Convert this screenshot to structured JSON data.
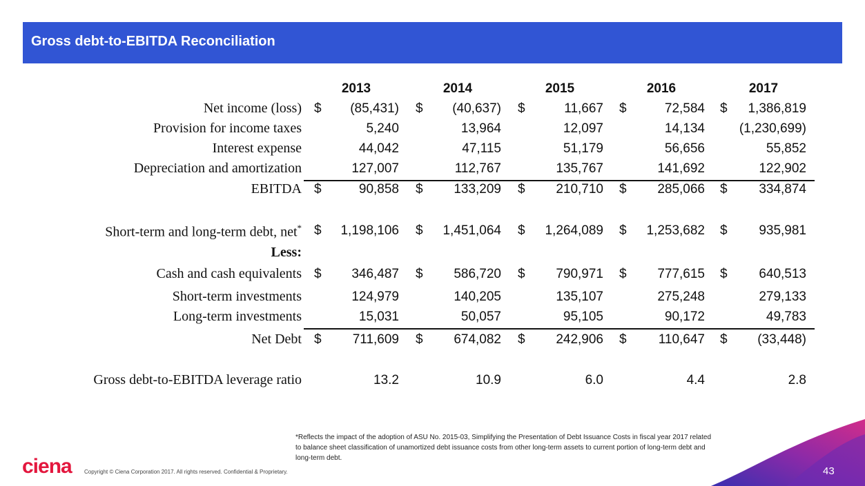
{
  "header": {
    "title": "Gross debt-to-EBITDA Reconciliation"
  },
  "table": {
    "currency_symbol": "$",
    "columns": [
      "2013",
      "2014",
      "2015",
      "2016",
      "2017"
    ],
    "rows": [
      {
        "label": "Net income (loss)",
        "dollar": true,
        "values": [
          "(85,431)",
          "(40,637)",
          "11,667",
          "72,584",
          "1,386,819"
        ]
      },
      {
        "label": "Provision for income taxes",
        "values": [
          "5,240",
          "13,964",
          "12,097",
          "14,134",
          "(1,230,699)"
        ]
      },
      {
        "label": "Interest expense",
        "values": [
          "44,042",
          "47,115",
          "51,179",
          "56,656",
          "55,852"
        ]
      },
      {
        "label": "Depreciation and amortization",
        "underline": true,
        "values": [
          "127,007",
          "112,767",
          "135,767",
          "141,692",
          "122,902"
        ]
      },
      {
        "label": "EBITDA",
        "dollar": true,
        "values": [
          "90,858",
          "133,209",
          "210,710",
          "285,066",
          "334,874"
        ]
      },
      {
        "label": "Short-term and long-term debt, net",
        "label_marker": "*",
        "dollar": true,
        "values": [
          "1,198,106",
          "1,451,064",
          "1,264,089",
          "1,253,682",
          "935,981"
        ]
      },
      {
        "label": "Less:",
        "bold": true
      },
      {
        "label": "Cash and cash equivalents",
        "dollar": true,
        "values": [
          "346,487",
          "586,720",
          "790,971",
          "777,615",
          "640,513"
        ]
      },
      {
        "label": "Short-term investments",
        "values": [
          "124,979",
          "140,205",
          "135,107",
          "275,248",
          "279,133"
        ]
      },
      {
        "label": "Long-term investments",
        "underline": true,
        "values": [
          "15,031",
          "50,057",
          "95,105",
          "90,172",
          "49,783"
        ]
      },
      {
        "label": "Net Debt",
        "dollar": true,
        "values": [
          "711,609",
          "674,082",
          "242,906",
          "110,647",
          "(33,448)"
        ]
      },
      {
        "label": "Gross debt-to-EBITDA leverage ratio",
        "values": [
          "13.2",
          "10.9",
          "6.0",
          "4.4",
          "2.8"
        ]
      }
    ]
  },
  "footnote": "*Reflects the impact of the adoption of ASU No. 2015-03, Simplifying the Presentation of Debt Issuance Costs in fiscal year 2017 related to balance sheet classification of unamortized debt issuance costs from other long-term assets to current portion of long-term debt and long-term debt.",
  "footer": {
    "logo": "ciena",
    "copyright": "Copyright © Ciena Corporation 2017. All rights reserved. Confidential & Proprietary.",
    "page_number": "43"
  }
}
